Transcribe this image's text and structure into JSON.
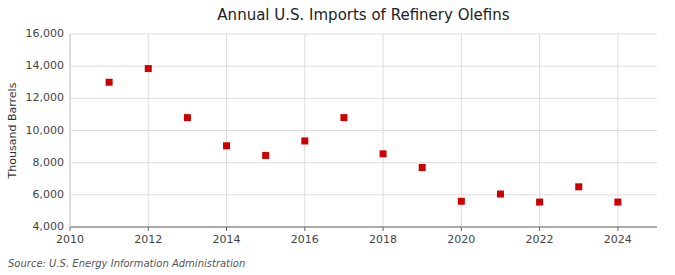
{
  "chart_data": {
    "type": "scatter",
    "title": "Annual U.S. Imports of Refinery Olefins",
    "y_label": "Thousand Barrels",
    "annotations": [
      "Source: U.S. Energy Information Administration"
    ],
    "x": [
      2011,
      2012,
      2013,
      2014,
      2015,
      2016,
      2017,
      2018,
      2019,
      2020,
      2021,
      2022,
      2023,
      2024
    ],
    "values": [
      13000,
      13850,
      10800,
      9050,
      8450,
      9350,
      10800,
      8550,
      7700,
      5600,
      6050,
      5550,
      6500,
      5550
    ],
    "color": "#cc0000",
    "marker": "square",
    "xlim": [
      2010,
      2025
    ],
    "ylim": [
      4000,
      16000
    ],
    "xticks": [
      2010,
      2012,
      2014,
      2016,
      2018,
      2020,
      2022,
      2024
    ],
    "yticks": [
      {
        "value": 4000,
        "label": "4,000"
      },
      {
        "value": 6000,
        "label": "6,000"
      },
      {
        "value": 8000,
        "label": "8,000"
      },
      {
        "value": 10000,
        "label": "10,000"
      },
      {
        "value": 12000,
        "label": "12,000"
      },
      {
        "value": 14000,
        "label": "14,000"
      },
      {
        "value": 16000,
        "label": "16,000"
      }
    ],
    "grid": true
  }
}
